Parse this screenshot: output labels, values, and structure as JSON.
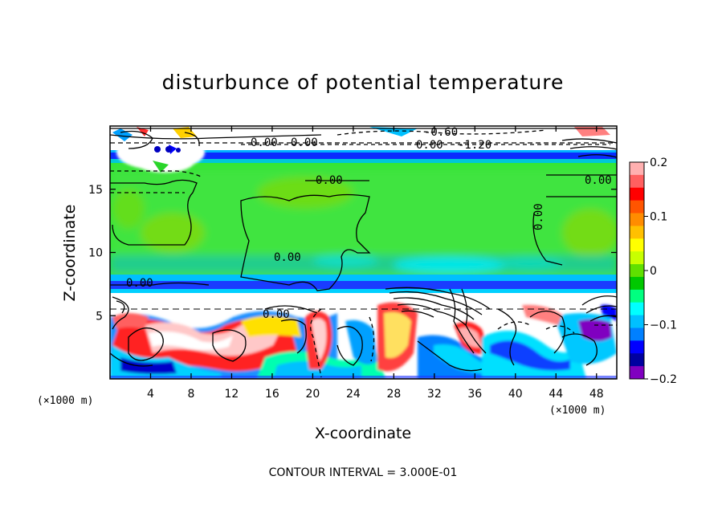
{
  "chart_data": {
    "type": "heatmap",
    "title": "disturbunce of potential temperature",
    "xlabel": "X-coordinate",
    "ylabel": "Z-coordinate",
    "xunit": "(×1000 m)",
    "yunit": "(×1000 m)",
    "xlim": [
      0,
      50
    ],
    "ylim": [
      0,
      20
    ],
    "x_ticks": [
      4,
      8,
      12,
      16,
      20,
      24,
      28,
      32,
      36,
      40,
      44,
      48
    ],
    "y_ticks": [
      5,
      10,
      15
    ],
    "colorbar": {
      "range": [
        -0.2,
        0.2
      ],
      "ticks": [
        0.2,
        0.1,
        0,
        -0.1,
        -0.2
      ],
      "tick_labels": [
        "0.2",
        "0.1",
        "0",
        "−0.1",
        "−0.2"
      ],
      "colors": [
        "#ffb0b0",
        "#ff6060",
        "#ff0000",
        "#ff5500",
        "#ff8c00",
        "#ffc000",
        "#ffff00",
        "#c8ff00",
        "#60e000",
        "#00c800",
        "#00ff80",
        "#00ffff",
        "#00c0ff",
        "#0080ff",
        "#0000ff",
        "#0000a0",
        "#8000c0"
      ]
    },
    "contour_labels": [
      "0.00",
      "0.00",
      "0.00",
      "0.00",
      "0.00",
      "0.00",
      "0.00",
      "0.00",
      "0.00",
      "-1.20",
      "-0.60"
    ],
    "contour_interval_text": "CONTOUR INTERVAL = 3.000E-01"
  }
}
